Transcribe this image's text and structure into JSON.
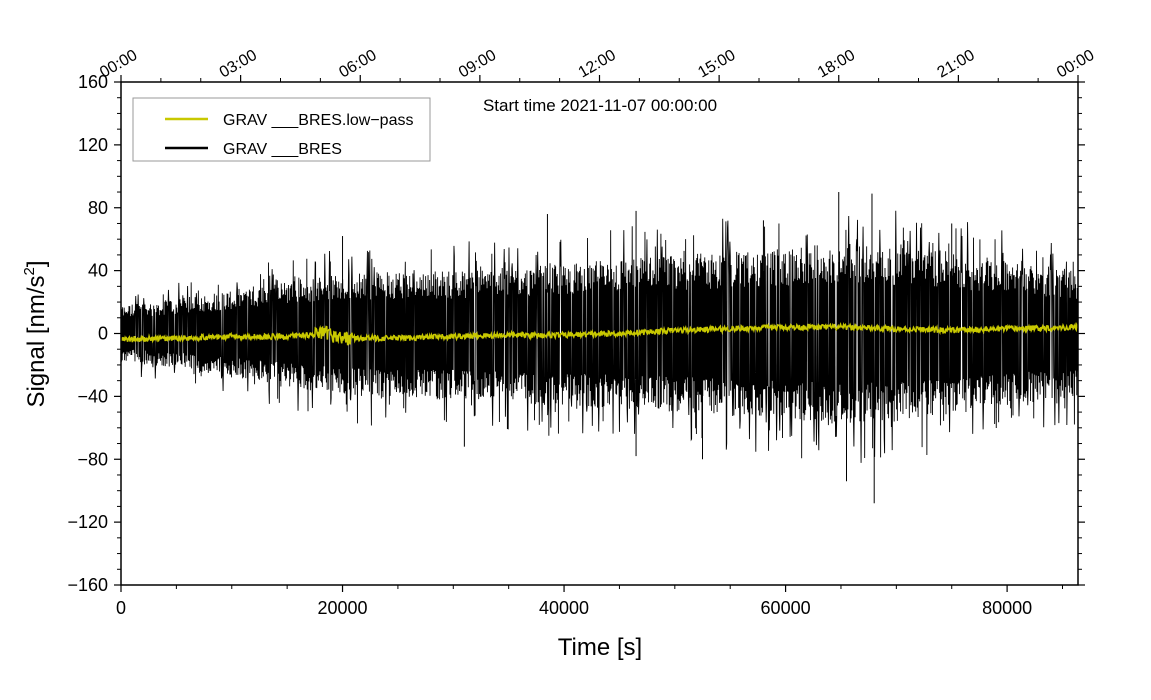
{
  "chart_data": {
    "type": "line",
    "title": "",
    "annotation": "Start time 2021-11-07 00:00:00",
    "xlabel": "Time [s]",
    "ylabel_main": "Signal [nm/s",
    "ylabel_sup": "2",
    "ylabel_end": "]",
    "xlim": [
      0,
      86400
    ],
    "ylim": [
      -160,
      160
    ],
    "x_ticks": [
      0,
      20000,
      40000,
      60000,
      80000
    ],
    "x_tick_labels": [
      "0",
      "20000",
      "40000",
      "60000",
      "80000"
    ],
    "y_ticks": [
      -160,
      -120,
      -80,
      -40,
      0,
      40,
      80,
      120,
      160
    ],
    "y_tick_labels": [
      "−160",
      "−120",
      "−80",
      "−40",
      "0",
      "40",
      "80",
      "120",
      "160"
    ],
    "top_axis_seconds": [
      0,
      10800,
      21600,
      32400,
      43200,
      54000,
      64800,
      75600,
      86400
    ],
    "top_axis_labels": [
      "00:00",
      "03:00",
      "06:00",
      "09:00",
      "12:00",
      "15:00",
      "18:00",
      "21:00",
      "00:00"
    ],
    "legend": [
      {
        "name": "GRAV ___BRES.low−pass",
        "color": "#c8c800"
      },
      {
        "name": "GRAV ___BRES",
        "color": "#000000"
      }
    ],
    "series": [
      {
        "name": "GRAV ___BRES",
        "color": "#000000",
        "envelope": {
          "x": [
            0,
            5000,
            10000,
            15000,
            20000,
            25000,
            30000,
            35000,
            40000,
            45000,
            50000,
            55000,
            60000,
            65000,
            70000,
            75000,
            80000,
            86400
          ],
          "upper": [
            18,
            22,
            28,
            34,
            38,
            40,
            40,
            42,
            44,
            48,
            50,
            52,
            54,
            58,
            56,
            52,
            46,
            40
          ],
          "lower": [
            -18,
            -22,
            -28,
            -34,
            -40,
            -42,
            -42,
            -44,
            -46,
            -48,
            -50,
            -52,
            -54,
            -58,
            -56,
            -52,
            -46,
            -40
          ]
        },
        "spikes": [
          {
            "x": 20000,
            "y": 62
          },
          {
            "x": 38500,
            "y": 76
          },
          {
            "x": 46500,
            "y": 78
          },
          {
            "x": 52500,
            "y": -80
          },
          {
            "x": 58000,
            "y": 72
          },
          {
            "x": 64800,
            "y": 90
          },
          {
            "x": 67800,
            "y": 89
          },
          {
            "x": 68000,
            "y": -108
          },
          {
            "x": 65500,
            "y": -94
          },
          {
            "x": 46500,
            "y": -78
          },
          {
            "x": 75000,
            "y": 70
          },
          {
            "x": 31000,
            "y": -72
          }
        ]
      },
      {
        "name": "GRAV ___BRES.low−pass",
        "color": "#c8c800",
        "x": [
          0,
          5000,
          10000,
          15000,
          18500,
          20000,
          25000,
          30000,
          35000,
          40000,
          45000,
          50000,
          55000,
          60000,
          65000,
          70000,
          75000,
          80000,
          86400
        ],
        "y": [
          -4,
          -3,
          -2,
          -2,
          0,
          -3,
          -3,
          -2,
          -1,
          -1,
          0,
          2,
          3,
          4,
          4,
          3,
          2,
          3,
          4
        ]
      }
    ]
  }
}
